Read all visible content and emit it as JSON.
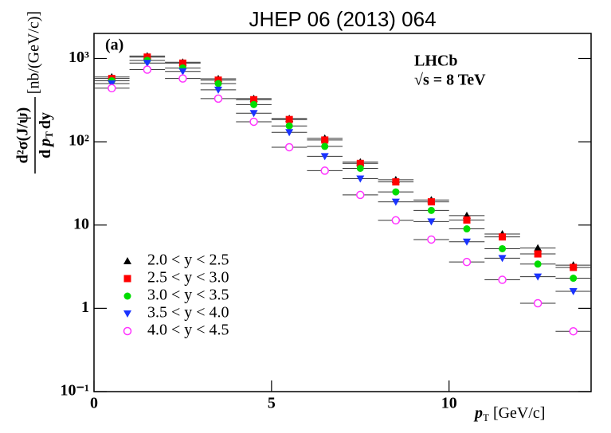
{
  "chart_data": {
    "type": "scatter",
    "title": "JHEP 06 (2013) 064",
    "annotations": [
      "(a)",
      "LHCb",
      "√s = 8 TeV"
    ],
    "xlabel": [
      "p",
      "T",
      "[GeV/c]"
    ],
    "ylabel": {
      "numerator": "d²σ(J/ψ)",
      "denominator": [
        "d",
        "p",
        "T",
        "dy"
      ],
      "units": "[nb/(GeV/c)]"
    },
    "x": [
      0.5,
      1.5,
      2.5,
      3.5,
      4.5,
      5.5,
      6.5,
      7.5,
      8.5,
      9.5,
      10.5,
      11.5,
      12.5,
      13.5
    ],
    "bins": [
      0,
      1,
      2,
      3,
      4,
      5,
      6,
      7,
      8,
      9,
      10,
      11,
      12,
      13,
      14
    ],
    "xlim": [
      0,
      14
    ],
    "xticks": [
      0,
      5,
      10
    ],
    "ylim": [
      0.1,
      2000
    ],
    "log_y": true,
    "yticks": [
      {
        "value": 0.1,
        "label": "10⁻¹"
      },
      1,
      10,
      {
        "value": 100,
        "label": "10²"
      },
      {
        "value": 1000,
        "label": "10³"
      }
    ],
    "legend": "lower left",
    "series": [
      {
        "name": "2.0 < y < 2.5",
        "color": "#000000",
        "marker": "triangle",
        "values": [
          600,
          1070,
          900,
          570,
          330,
          190,
          110,
          57,
          35,
          20,
          13,
          7.8,
          5.3,
          3.3
        ]
      },
      {
        "name": "2.5 < y < 3.0",
        "color": "#ff0000",
        "marker": "square",
        "values": [
          575,
          1040,
          880,
          550,
          320,
          185,
          105,
          55,
          33,
          19,
          11.5,
          7.2,
          4.5,
          3.1
        ]
      },
      {
        "name": "3.0 < y < 3.5",
        "color": "#00dd00",
        "marker": "circle",
        "values": [
          540,
          950,
          770,
          500,
          280,
          155,
          88,
          48,
          25,
          15,
          9,
          5.2,
          3.4,
          2.3
        ]
      },
      {
        "name": "3.5 < y < 4.0",
        "color": "#1a33ff",
        "marker": "triangle-down",
        "values": [
          500,
          880,
          700,
          420,
          220,
          130,
          67,
          36,
          19,
          11,
          6.3,
          4.0,
          2.4,
          1.6
        ]
      },
      {
        "name": "4.0 < y < 4.5",
        "color": "#ff33ff",
        "marker": "open-circle",
        "values": [
          440,
          735,
          575,
          330,
          174,
          86,
          45,
          23,
          11.4,
          6.7,
          3.6,
          2.2,
          1.15,
          0.53
        ]
      }
    ]
  }
}
